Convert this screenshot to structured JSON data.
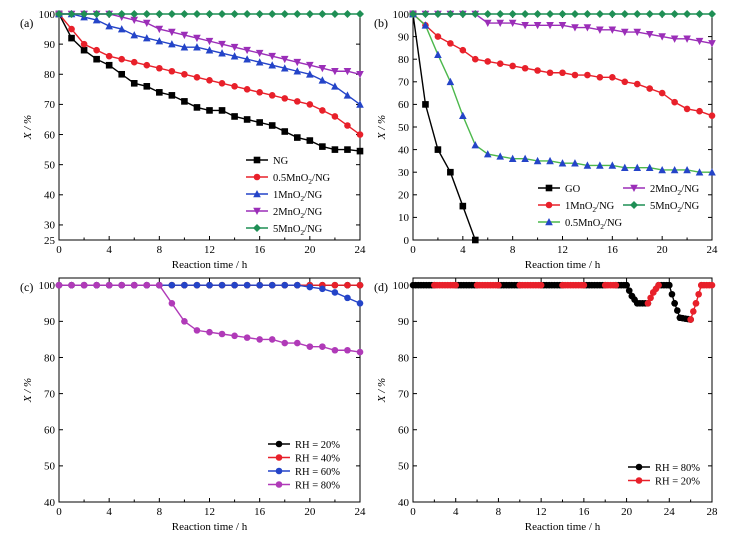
{
  "chart_data": [
    {
      "panel_label": "(a)",
      "type": "line",
      "xlabel": "Reaction time / h",
      "ylabel": "X / %",
      "xlim": [
        0,
        24
      ],
      "ylim": [
        25,
        100
      ],
      "xticks": [
        0,
        4,
        8,
        12,
        16,
        20,
        24
      ],
      "yticks": [
        25,
        30,
        40,
        50,
        60,
        70,
        80,
        90,
        100
      ],
      "grid": false,
      "legend_position": "lower-right",
      "series": [
        {
          "name": "NG",
          "color": "#000000",
          "marker": "square",
          "x": [
            0,
            1,
            2,
            3,
            4,
            5,
            6,
            7,
            8,
            9,
            10,
            11,
            12,
            13,
            14,
            15,
            16,
            17,
            18,
            19,
            20,
            21,
            22,
            23,
            24
          ],
          "y": [
            100,
            92,
            88,
            85,
            83,
            80,
            77,
            76,
            74,
            73,
            71,
            69,
            68,
            68,
            66,
            65,
            64,
            63,
            61,
            59,
            58,
            56,
            55,
            55,
            54.5
          ]
        },
        {
          "name": "0.5MnO2/NG",
          "color": "#e8202a",
          "marker": "circle",
          "x": [
            0,
            1,
            2,
            3,
            4,
            5,
            6,
            7,
            8,
            9,
            10,
            11,
            12,
            13,
            14,
            15,
            16,
            17,
            18,
            19,
            20,
            21,
            22,
            23,
            24
          ],
          "y": [
            100,
            95,
            90,
            88,
            86,
            85,
            84,
            83,
            82,
            81,
            80,
            79,
            78,
            77,
            76,
            75,
            74,
            73,
            72,
            71,
            70,
            68,
            66,
            63,
            60
          ]
        },
        {
          "name": "1MnO2/NG",
          "color": "#2444c8",
          "marker": "triangle-up",
          "x": [
            0,
            1,
            2,
            3,
            4,
            5,
            6,
            7,
            8,
            9,
            10,
            11,
            12,
            13,
            14,
            15,
            16,
            17,
            18,
            19,
            20,
            21,
            22,
            23,
            24
          ],
          "y": [
            100,
            100,
            99,
            98,
            96,
            95,
            93,
            92,
            91,
            90,
            89,
            89,
            88,
            87,
            86,
            85,
            84,
            83,
            82,
            81,
            80,
            78,
            76,
            73,
            70
          ]
        },
        {
          "name": "2MnO2/NG",
          "color": "#9b2eb8",
          "marker": "triangle-down",
          "x": [
            0,
            1,
            2,
            3,
            4,
            5,
            6,
            7,
            8,
            9,
            10,
            11,
            12,
            13,
            14,
            15,
            16,
            17,
            18,
            19,
            20,
            21,
            22,
            23,
            24
          ],
          "y": [
            100,
            100,
            100,
            100,
            100,
            99,
            98,
            97,
            95,
            94,
            93,
            92,
            91,
            90,
            89,
            88,
            87,
            86,
            85,
            84,
            83,
            82,
            81,
            81,
            80
          ]
        },
        {
          "name": "5MnO2/NG",
          "color": "#1f8f55",
          "marker": "diamond",
          "x": [
            0,
            1,
            2,
            3,
            4,
            5,
            6,
            7,
            8,
            9,
            10,
            11,
            12,
            13,
            14,
            15,
            16,
            17,
            18,
            19,
            20,
            21,
            22,
            23,
            24
          ],
          "y": [
            100,
            100,
            100,
            100,
            100,
            100,
            100,
            100,
            100,
            100,
            100,
            100,
            100,
            100,
            100,
            100,
            100,
            100,
            100,
            100,
            100,
            100,
            100,
            100,
            100
          ]
        }
      ]
    },
    {
      "panel_label": "(b)",
      "type": "line",
      "xlabel": "Reaction time / h",
      "ylabel": "X / %",
      "xlim": [
        0,
        24
      ],
      "ylim": [
        0,
        100
      ],
      "xticks": [
        0,
        4,
        8,
        12,
        16,
        20,
        24
      ],
      "yticks": [
        0,
        10,
        20,
        30,
        40,
        50,
        60,
        70,
        80,
        90,
        100
      ],
      "grid": false,
      "legend_position": "lower-center",
      "series": [
        {
          "name": "GO",
          "color": "#000000",
          "marker": "square",
          "x": [
            0,
            1,
            2,
            3,
            4,
            5
          ],
          "y": [
            100,
            60,
            40,
            30,
            15,
            0
          ]
        },
        {
          "name": "1MnO2/NG",
          "color": "#e8202a",
          "marker": "circle",
          "x": [
            0,
            1,
            2,
            3,
            4,
            5,
            6,
            7,
            8,
            9,
            10,
            11,
            12,
            13,
            14,
            15,
            16,
            17,
            18,
            19,
            20,
            21,
            22,
            23,
            24
          ],
          "y": [
            100,
            95,
            90,
            87,
            84,
            80,
            79,
            78,
            77,
            76,
            75,
            74,
            74,
            73,
            73,
            72,
            72,
            70,
            69,
            67,
            65,
            61,
            58,
            57,
            55
          ]
        },
        {
          "name": "0.5MnO2/NG",
          "color": "#2444c8",
          "marker": "triangle-up",
          "line_color": "#4cb84c",
          "x": [
            0,
            1,
            2,
            3,
            4,
            5,
            6,
            7,
            8,
            9,
            10,
            11,
            12,
            13,
            14,
            15,
            16,
            17,
            18,
            19,
            20,
            21,
            22,
            23,
            24
          ],
          "y": [
            100,
            95,
            82,
            70,
            55,
            42,
            38,
            37,
            36,
            36,
            35,
            35,
            34,
            34,
            33,
            33,
            33,
            32,
            32,
            32,
            31,
            31,
            31,
            30,
            30
          ]
        },
        {
          "name": "2MnO2/NG",
          "color": "#9b2eb8",
          "marker": "triangle-down",
          "x": [
            0,
            1,
            2,
            3,
            4,
            5,
            6,
            7,
            8,
            9,
            10,
            11,
            12,
            13,
            14,
            15,
            16,
            17,
            18,
            19,
            20,
            21,
            22,
            23,
            24
          ],
          "y": [
            100,
            100,
            100,
            100,
            100,
            100,
            96,
            96,
            96,
            95,
            95,
            95,
            95,
            94,
            94,
            93,
            93,
            92,
            92,
            91,
            90,
            89,
            89,
            88,
            87
          ]
        },
        {
          "name": "5MnO2/NG",
          "color": "#1f8f55",
          "marker": "diamond",
          "x": [
            0,
            1,
            2,
            3,
            4,
            5,
            6,
            7,
            8,
            9,
            10,
            11,
            12,
            13,
            14,
            15,
            16,
            17,
            18,
            19,
            20,
            21,
            22,
            23,
            24
          ],
          "y": [
            100,
            100,
            100,
            100,
            100,
            100,
            100,
            100,
            100,
            100,
            100,
            100,
            100,
            100,
            100,
            100,
            100,
            100,
            100,
            100,
            100,
            100,
            100,
            100,
            100
          ]
        }
      ]
    },
    {
      "panel_label": "(c)",
      "type": "line",
      "xlabel": "Reaction time / h",
      "ylabel": "X / %",
      "xlim": [
        0,
        24
      ],
      "ylim": [
        40,
        102
      ],
      "xticks": [
        0,
        4,
        8,
        12,
        16,
        20,
        24
      ],
      "yticks": [
        40,
        50,
        60,
        70,
        80,
        90,
        100
      ],
      "grid": false,
      "legend_position": "lower-right",
      "series": [
        {
          "name": "RH = 20%",
          "color": "#000000",
          "marker": "circle",
          "x": [
            0,
            1,
            2,
            3,
            4,
            5,
            6,
            7,
            8,
            9,
            10,
            11,
            12,
            13,
            14,
            15,
            16,
            17,
            18,
            19,
            20,
            21,
            22,
            23,
            24
          ],
          "y": [
            100,
            100,
            100,
            100,
            100,
            100,
            100,
            100,
            100,
            100,
            100,
            100,
            100,
            100,
            100,
            100,
            100,
            100,
            100,
            100,
            100,
            100,
            100,
            100,
            100
          ]
        },
        {
          "name": "RH = 40%",
          "color": "#e8202a",
          "marker": "circle",
          "x": [
            0,
            1,
            2,
            3,
            4,
            5,
            6,
            7,
            8,
            9,
            10,
            11,
            12,
            13,
            14,
            15,
            16,
            17,
            18,
            19,
            20,
            21,
            22,
            23,
            24
          ],
          "y": [
            100,
            100,
            100,
            100,
            100,
            100,
            100,
            100,
            100,
            100,
            100,
            100,
            100,
            100,
            100,
            100,
            100,
            100,
            100,
            100,
            100,
            100,
            100,
            100,
            100
          ]
        },
        {
          "name": "RH = 60%",
          "color": "#2444c8",
          "marker": "circle",
          "x": [
            0,
            1,
            2,
            3,
            4,
            5,
            6,
            7,
            8,
            9,
            10,
            11,
            12,
            13,
            14,
            15,
            16,
            17,
            18,
            19,
            20,
            21,
            22,
            23,
            24
          ],
          "y": [
            100,
            100,
            100,
            100,
            100,
            100,
            100,
            100,
            100,
            100,
            100,
            100,
            100,
            100,
            100,
            100,
            100,
            100,
            100,
            100,
            99.5,
            99,
            98,
            96.5,
            95
          ]
        },
        {
          "name": "RH = 80%",
          "color": "#b03ab8",
          "marker": "circle",
          "x": [
            0,
            1,
            2,
            3,
            4,
            5,
            6,
            7,
            8,
            9,
            10,
            11,
            12,
            13,
            14,
            15,
            16,
            17,
            18,
            19,
            20,
            21,
            22,
            23,
            24
          ],
          "y": [
            100,
            100,
            100,
            100,
            100,
            100,
            100,
            100,
            100,
            95,
            90,
            87.5,
            87,
            86.5,
            86,
            85.5,
            85,
            85,
            84,
            84,
            83,
            83,
            82,
            82,
            81.5
          ]
        }
      ]
    },
    {
      "panel_label": "(d)",
      "type": "line",
      "xlabel": "Reaction time / h",
      "ylabel": "X / %",
      "xlim": [
        0,
        28
      ],
      "ylim": [
        40,
        102
      ],
      "xticks": [
        0,
        4,
        8,
        12,
        16,
        20,
        24,
        28
      ],
      "yticks": [
        40,
        50,
        60,
        70,
        80,
        90,
        100
      ],
      "grid": false,
      "legend_position": "lower-right",
      "series": [
        {
          "name": "RH = 80%",
          "color": "#000000",
          "marker": "circle",
          "segments": [
            {
              "x": [
                0,
                2
              ],
              "y": [
                100,
                100
              ]
            },
            {
              "x": [
                4,
                6
              ],
              "y": [
                100,
                100
              ]
            },
            {
              "x": [
                8,
                10
              ],
              "y": [
                100,
                100
              ]
            },
            {
              "x": [
                12,
                14
              ],
              "y": [
                100,
                100
              ]
            },
            {
              "x": [
                16,
                18
              ],
              "y": [
                100,
                100
              ]
            },
            {
              "x": [
                19,
                20,
                20.5,
                21,
                22
              ],
              "y": [
                100,
                100,
                97,
                95,
                95
              ]
            },
            {
              "x": [
                23,
                24,
                24.5,
                25,
                26
              ],
              "y": [
                100,
                100,
                95,
                91,
                90.5
              ]
            }
          ]
        },
        {
          "name": "RH = 20%",
          "color": "#e8202a",
          "marker": "circle",
          "segments": [
            {
              "x": [
                2,
                4
              ],
              "y": [
                100,
                100
              ]
            },
            {
              "x": [
                6,
                8
              ],
              "y": [
                100,
                100
              ]
            },
            {
              "x": [
                10,
                12
              ],
              "y": [
                100,
                100
              ]
            },
            {
              "x": [
                14,
                16
              ],
              "y": [
                100,
                100
              ]
            },
            {
              "x": [
                18,
                19
              ],
              "y": [
                100,
                100
              ]
            },
            {
              "x": [
                22,
                22.5,
                23
              ],
              "y": [
                95,
                98,
                100
              ]
            },
            {
              "x": [
                26,
                26.5,
                27,
                28
              ],
              "y": [
                90.5,
                95,
                100,
                100
              ]
            }
          ]
        }
      ]
    }
  ]
}
